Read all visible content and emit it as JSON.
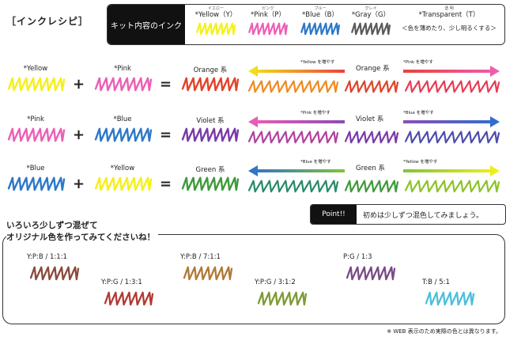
{
  "section_title": "［インクレシピ］",
  "legend": {
    "header": "キット内容のインク",
    "inks": [
      {
        "kana": "イエロー",
        "name": "*Yellow（Y）",
        "color": "#f5f01a"
      },
      {
        "kana": "ピンク",
        "name": "*Pink（P）",
        "color": "#ec5fb5"
      },
      {
        "kana": "ブルー",
        "name": "*Blue（B）",
        "color": "#2d78c8"
      },
      {
        "kana": "グレイ",
        "name": "*Gray（G）",
        "color": "#5a5a5a"
      }
    ],
    "transparent": {
      "kana": "透 明",
      "name": "*Transparent（T）",
      "note": "＜色を薄めたり、少し明るくする＞"
    }
  },
  "recipes": [
    {
      "a": "*Yellow",
      "a_color": "#f5f01a",
      "b": "*Pink",
      "b_color": "#ec5fb5",
      "plus": "+",
      "equals": "=",
      "result": "Orange 系",
      "result_color": "#e0442a",
      "left_arrow": {
        "label": "*Yellow を増やす",
        "from": "#e8433a",
        "to": "#f5e51a"
      },
      "right_arrow": {
        "label": "*Pink を増やす",
        "from": "#e8433a",
        "to": "#ec5fb5"
      },
      "shade_left": "#ef8a22",
      "shade_right": "#e93c54"
    },
    {
      "a": "*Pink",
      "a_color": "#ec5fb5",
      "b": "*Blue",
      "b_color": "#2d78c8",
      "plus": "+",
      "equals": "=",
      "result": "Violet 系",
      "result_color": "#7a3aa8",
      "left_arrow": {
        "label": "*Pink を増やす",
        "from": "#8a4fb0",
        "to": "#ec5fb5"
      },
      "right_arrow": {
        "label": "*Blue を増やす",
        "from": "#8a4fb0",
        "to": "#2d6fd0"
      },
      "shade_left": "#b0429f",
      "shade_right": "#4f4cae"
    },
    {
      "a": "*Blue",
      "a_color": "#2d78c8",
      "b": "*Yellow",
      "b_color": "#f5f01a",
      "plus": "+",
      "equals": "=",
      "result": "Green 系",
      "result_color": "#3e9a3a",
      "left_arrow": {
        "label": "*Blue を増やす",
        "from": "#7fc43a",
        "to": "#2d6fd0"
      },
      "right_arrow": {
        "label": "*Yellow を増やす",
        "from": "#7fc43a",
        "to": "#f5f01a"
      },
      "shade_left": "#2a8a6a",
      "shade_right": "#8cc326"
    }
  ],
  "point": {
    "label": "Point!!",
    "text": "初めは少しずつ混色してみましょう。"
  },
  "mix_title": [
    "いろいろ少しずつ混ぜて",
    "オリジナル色を作ってみてくださいね！"
  ],
  "mixes": [
    {
      "ratio": "Y:P:B / 1:1:1",
      "color": "#8a4a3c"
    },
    {
      "ratio": "Y:P:G / 1:3:1",
      "color": "#b23a34"
    },
    {
      "ratio": "Y:P:B / 7:1:1",
      "color": "#b07a36"
    },
    {
      "ratio": "Y:P:G / 3:1:2",
      "color": "#7e9a36"
    },
    {
      "ratio": "P:G / 1:3",
      "color": "#7a4b86"
    },
    {
      "ratio": "T:B / 5:1",
      "color": "#4cc0dc"
    }
  ],
  "footnote": "※ WEB 表示のため実際の色とは異なります。"
}
